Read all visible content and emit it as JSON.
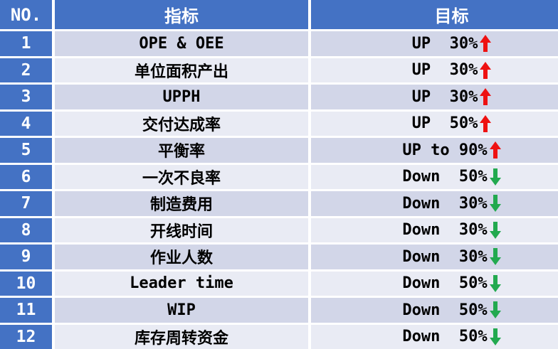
{
  "colors": {
    "header_blue": "#4472C4",
    "band_dark": "#D2D6E8",
    "band_light": "#E9EBF4",
    "up_arrow_red": "#EE1111",
    "down_arrow_green": "#22A94F",
    "header_text": "#FFFFFF",
    "body_text": "#000000"
  },
  "header": {
    "no": "NO.",
    "indicator": "指标",
    "target": "目标"
  },
  "rows": [
    {
      "no": "1",
      "indicator": "OPE & OEE",
      "target": "UP  30%",
      "direction": "up"
    },
    {
      "no": "2",
      "indicator": "单位面积产出",
      "target": "UP  30%",
      "direction": "up"
    },
    {
      "no": "3",
      "indicator": "UPPH",
      "target": "UP  30%",
      "direction": "up"
    },
    {
      "no": "4",
      "indicator": "交付达成率",
      "target": "UP  50%",
      "direction": "up"
    },
    {
      "no": "5",
      "indicator": "平衡率",
      "target": "UP to 90%",
      "direction": "up"
    },
    {
      "no": "6",
      "indicator": "一次不良率",
      "target": "Down  50%",
      "direction": "down"
    },
    {
      "no": "7",
      "indicator": "制造费用",
      "target": "Down  30%",
      "direction": "down"
    },
    {
      "no": "8",
      "indicator": "开线时间",
      "target": "Down  30%",
      "direction": "down"
    },
    {
      "no": "9",
      "indicator": "作业人数",
      "target": "Down  30%",
      "direction": "down"
    },
    {
      "no": "10",
      "indicator": "Leader time",
      "target": "Down  50%",
      "direction": "down"
    },
    {
      "no": "11",
      "indicator": "WIP",
      "target": "Down  50%",
      "direction": "down"
    },
    {
      "no": "12",
      "indicator": "库存周转资金",
      "target": "Down  50%",
      "direction": "down"
    }
  ]
}
